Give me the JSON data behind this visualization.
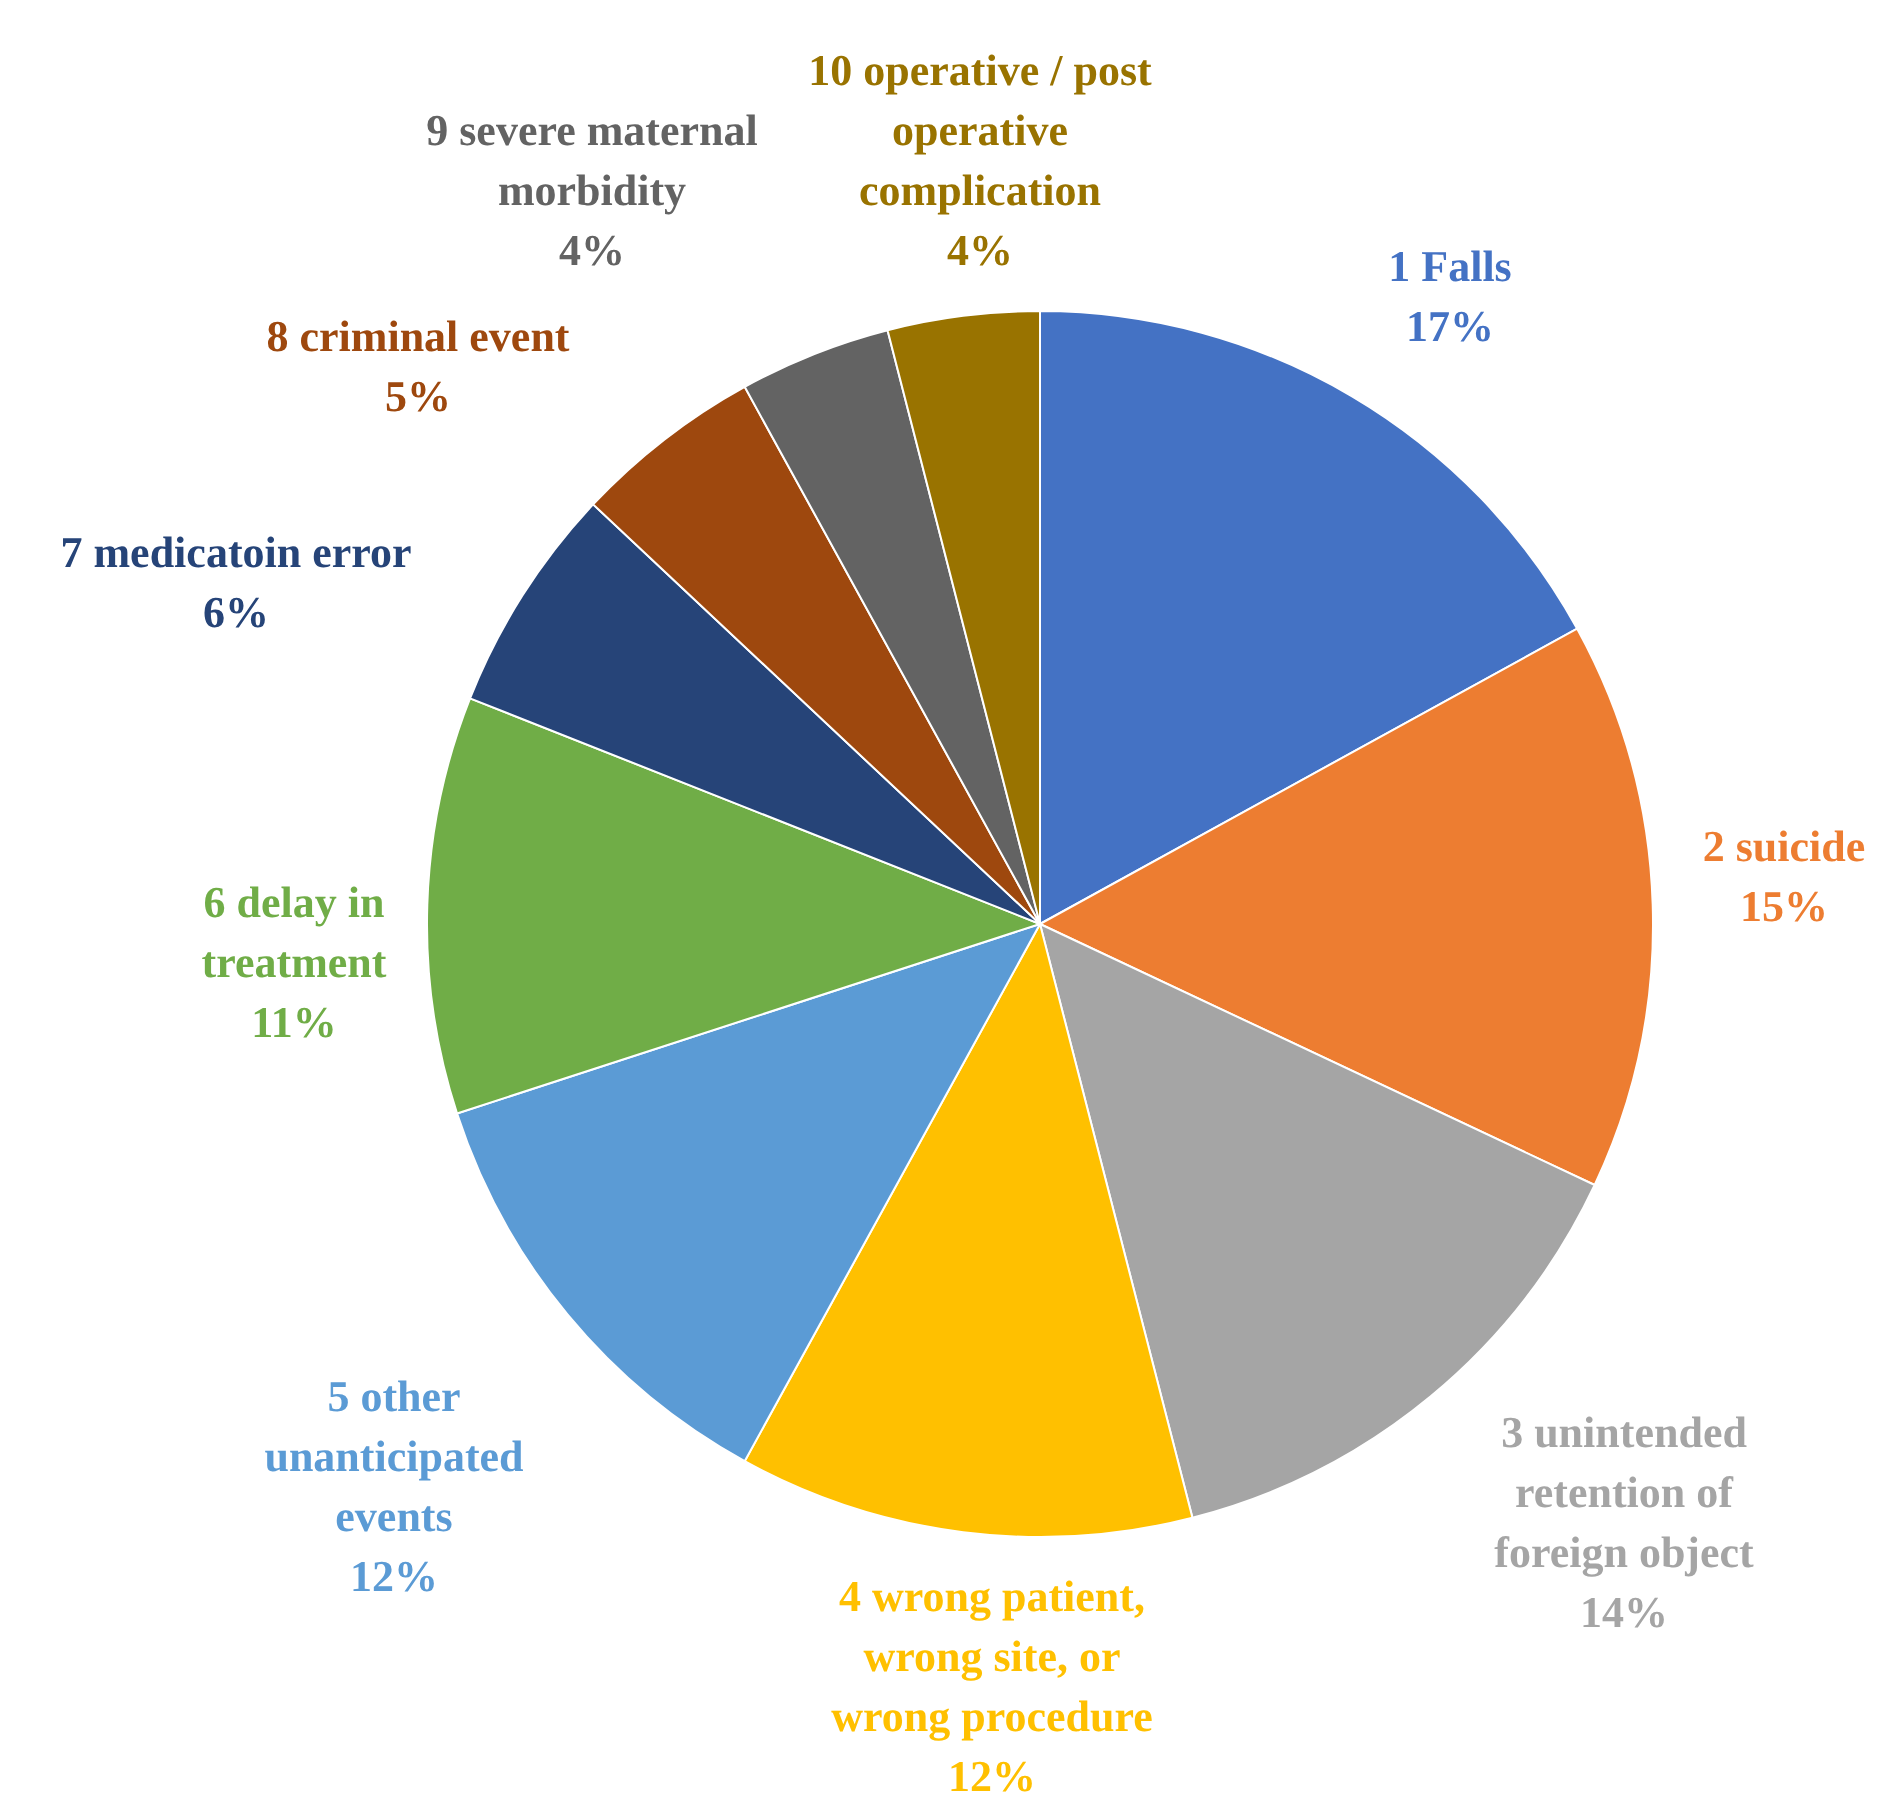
{
  "chart_data": {
    "type": "pie",
    "categories": [
      "1 Falls",
      "2 suicide",
      "3 unintended retention of foreign object",
      "4 wrong patient, wrong site, or wrong procedure",
      "5 other unanticipated events",
      "6 delay in treatment",
      "7 medicatoin error",
      "8 criminal event",
      "9 severe maternal morbidity",
      "10 operative / post operative complication"
    ],
    "values": [
      17,
      15,
      14,
      12,
      12,
      11,
      6,
      5,
      4,
      4
    ],
    "value_labels": [
      "17%",
      "15%",
      "14%",
      "12%",
      "12%",
      "11%",
      "6%",
      "5%",
      "4%",
      "4%"
    ],
    "colors": [
      "#4472c4",
      "#ed7d31",
      "#a5a5a5",
      "#ffc000",
      "#5b9bd5",
      "#70ad47",
      "#264478",
      "#9e480e",
      "#636363",
      "#997300"
    ],
    "legend": false
  }
}
